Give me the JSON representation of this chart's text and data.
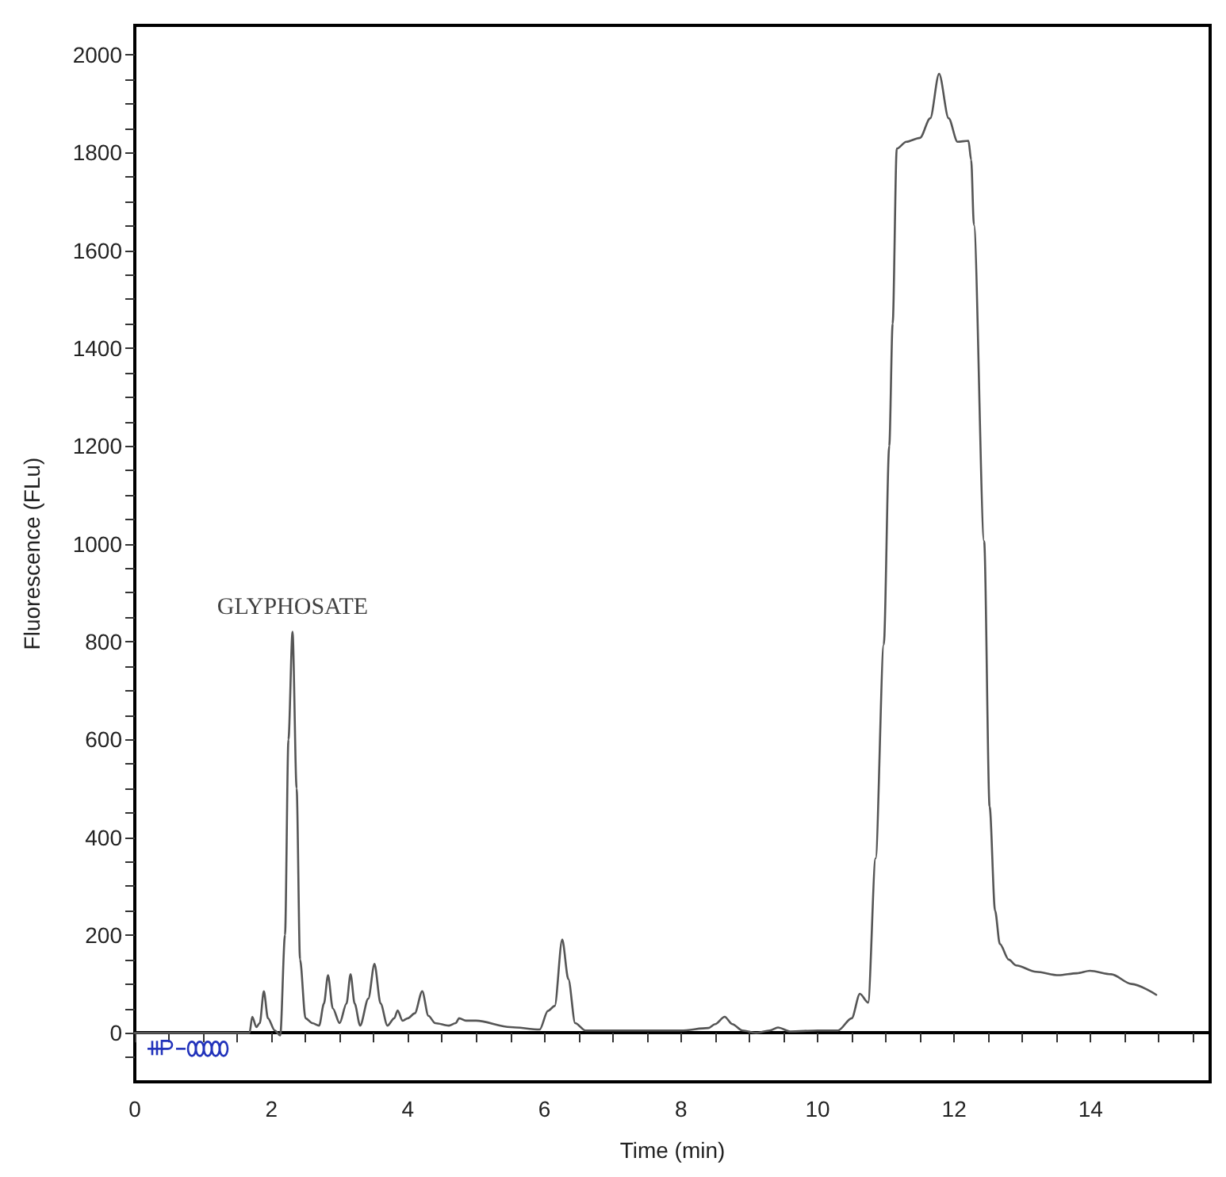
{
  "chart_data": {
    "type": "line",
    "xlabel": "Time (min)",
    "ylabel": "Fluorescence (FLu)",
    "xlim": [
      0,
      15.75
    ],
    "ylim": [
      -100,
      2060
    ],
    "xticks": [
      0,
      {
        "value": 0.5,
        "label": null
      },
      {
        "value": 1,
        "label": null
      },
      {
        "value": 1.5,
        "label": null
      },
      2,
      {
        "value": 2.5,
        "label": null
      },
      {
        "value": 3,
        "label": null
      },
      {
        "value": 3.5,
        "label": null
      },
      4,
      {
        "value": 4.5,
        "label": null
      },
      {
        "value": 5,
        "label": null
      },
      {
        "value": 5.5,
        "label": null
      },
      6,
      {
        "value": 6.5,
        "label": null
      },
      {
        "value": 7,
        "label": null
      },
      {
        "value": 7.5,
        "label": null
      },
      8,
      {
        "value": 8.5,
        "label": null
      },
      {
        "value": 9,
        "label": null
      },
      {
        "value": 9.5,
        "label": null
      },
      10,
      {
        "value": 10.5,
        "label": null
      },
      {
        "value": 11,
        "label": null
      },
      {
        "value": 11.5,
        "label": null
      },
      12,
      {
        "value": 12.5,
        "label": null
      },
      {
        "value": 13,
        "label": null
      },
      {
        "value": 13.5,
        "label": null
      },
      14,
      {
        "value": 14.5,
        "label": null
      },
      {
        "value": 15,
        "label": null
      },
      {
        "value": 15.5,
        "label": null
      }
    ],
    "yticks": [
      {
        "value": -50,
        "label": null
      },
      0,
      {
        "value": 50,
        "label": null
      },
      {
        "value": 100,
        "label": null
      },
      {
        "value": 150,
        "label": null
      },
      200,
      {
        "value": 250,
        "label": null
      },
      {
        "value": 300,
        "label": null
      },
      {
        "value": 350,
        "label": null
      },
      400,
      {
        "value": 450,
        "label": null
      },
      {
        "value": 500,
        "label": null
      },
      {
        "value": 550,
        "label": null
      },
      600,
      {
        "value": 650,
        "label": null
      },
      {
        "value": 700,
        "label": null
      },
      {
        "value": 750,
        "label": null
      },
      800,
      {
        "value": 850,
        "label": null
      },
      {
        "value": 900,
        "label": null
      },
      {
        "value": 950,
        "label": null
      },
      1000,
      {
        "value": 1050,
        "label": null
      },
      {
        "value": 1100,
        "label": null
      },
      {
        "value": 1150,
        "label": null
      },
      1200,
      {
        "value": 1250,
        "label": null
      },
      {
        "value": 1300,
        "label": null
      },
      {
        "value": 1350,
        "label": null
      },
      1400,
      {
        "value": 1450,
        "label": null
      },
      {
        "value": 1500,
        "label": null
      },
      {
        "value": 1550,
        "label": null
      },
      1600,
      {
        "value": 1650,
        "label": null
      },
      {
        "value": 1700,
        "label": null
      },
      {
        "value": 1750,
        "label": null
      },
      1800,
      {
        "value": 1850,
        "label": null
      },
      {
        "value": 1900,
        "label": null
      },
      {
        "value": 1950,
        "label": null
      },
      2000
    ],
    "marker": "none",
    "line_style": "solid",
    "annotations": [
      {
        "text": "GLYPHOSATE",
        "x": 2.31,
        "y": 820
      }
    ],
    "series": [
      {
        "color": "#555555",
        "x": [
          0,
          1,
          1.68,
          1.72,
          1.78,
          1.83,
          1.89,
          1.95,
          2.05,
          2.13,
          2.2,
          2.25,
          2.31,
          2.37,
          2.42,
          2.5,
          2.6,
          2.7,
          2.77,
          2.83,
          2.9,
          3.0,
          3.1,
          3.16,
          3.22,
          3.3,
          3.42,
          3.51,
          3.6,
          3.7,
          3.8,
          3.85,
          3.92,
          4.0,
          4.1,
          4.21,
          4.3,
          4.4,
          4.6,
          4.7,
          4.75,
          4.85,
          5.0,
          5.5,
          5.93,
          6.05,
          6.15,
          6.26,
          6.35,
          6.45,
          6.6,
          7.0,
          7.5,
          8.0,
          8.4,
          8.5,
          8.64,
          8.75,
          8.9,
          9.1,
          9.3,
          9.42,
          9.6,
          10.0,
          10.3,
          10.5,
          10.62,
          10.74,
          10.85,
          10.97,
          11.05,
          11.1,
          11.16,
          11.3,
          11.5,
          11.65,
          11.78,
          11.92,
          12.05,
          12.21,
          12.25,
          12.29,
          12.44,
          12.52,
          12.6,
          12.67,
          12.8,
          12.91,
          13.2,
          13.53,
          13.8,
          13.99,
          14.3,
          14.6,
          14.96
        ],
        "values": [
          0,
          0,
          0,
          33,
          12,
          20,
          85,
          30,
          5,
          -5,
          200,
          600,
          820,
          500,
          150,
          30,
          20,
          15,
          60,
          118,
          50,
          20,
          60,
          120,
          60,
          15,
          70,
          141,
          60,
          15,
          30,
          46,
          25,
          30,
          40,
          85,
          35,
          20,
          15,
          20,
          30,
          25,
          25,
          12,
          7,
          45,
          55,
          191,
          110,
          20,
          5,
          5,
          5,
          5,
          10,
          18,
          33,
          18,
          5,
          0,
          5,
          11,
          3,
          5,
          5,
          30,
          80,
          62,
          357,
          794,
          1200,
          1450,
          1808,
          1822,
          1830,
          1870,
          1961,
          1870,
          1822,
          1824,
          1785,
          1652,
          1005,
          463,
          250,
          182,
          150,
          138,
          125,
          118,
          122,
          127,
          120,
          100,
          78
        ]
      }
    ]
  }
}
